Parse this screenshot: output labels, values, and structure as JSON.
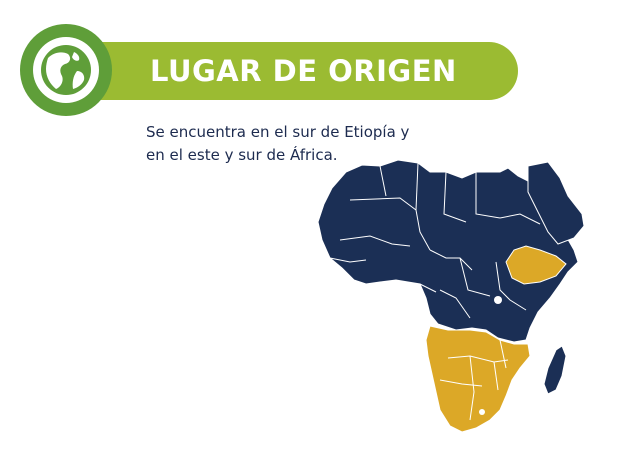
{
  "header": {
    "title": "LUGAR DE ORIGEN",
    "icon": "globe-icon"
  },
  "description": {
    "line1": "Se encuentra en el sur de Etiopía y",
    "line2": "en el este y sur de África."
  },
  "map": {
    "subject": "Africa",
    "highlighted_regions": [
      "Ethiopia",
      "Southern Africa"
    ],
    "colors": {
      "base": "#1b2f55",
      "highlight": "#dca827",
      "borders": "#ffffff"
    }
  },
  "colors": {
    "banner": "#9bbb32",
    "badge": "#5f9e39",
    "text": "#1d2b4f"
  }
}
